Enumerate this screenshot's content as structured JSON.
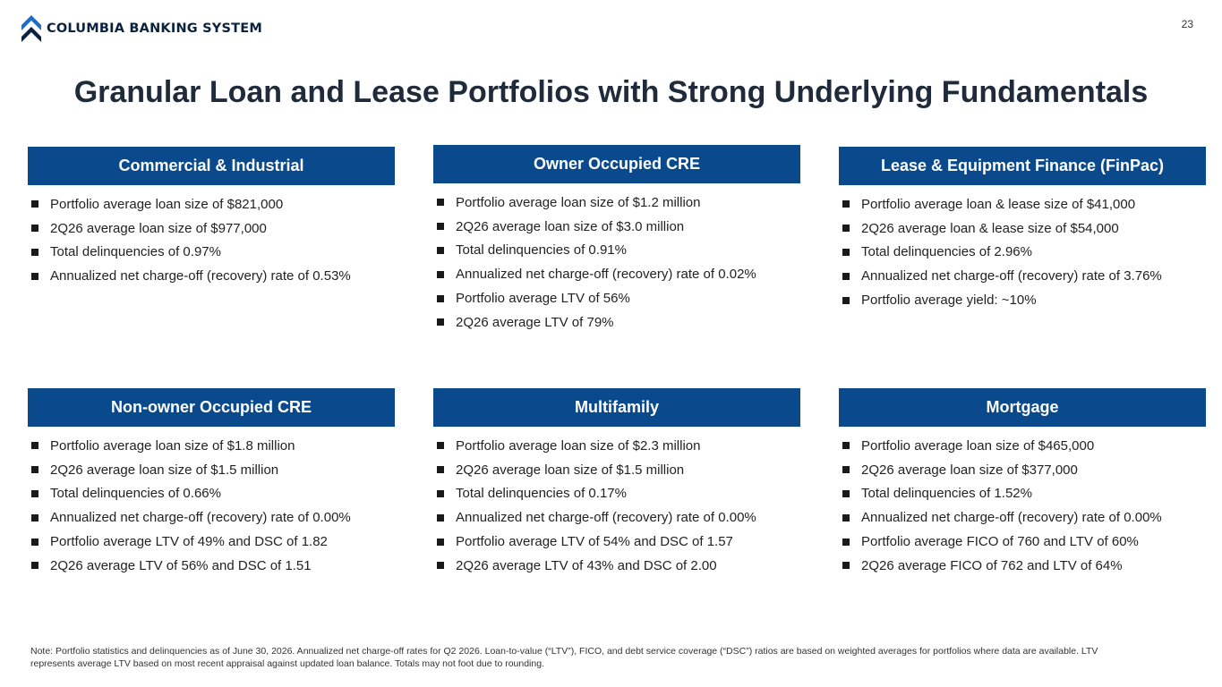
{
  "brand": {
    "name": "COLUMBIA BANKING SYSTEM",
    "logo_icon": "chevron-stack-logo-icon",
    "primary_color": "#0a4a8c",
    "logo_color": "#0a2240"
  },
  "page_number": "23",
  "title": "Granular Loan and Lease Portfolios with Strong Underlying Fundamentals",
  "panels": [
    {
      "header": "Commercial & Industrial",
      "items": [
        "Portfolio average loan size of $821,000",
        "2Q26 average loan size of $977,000",
        "Total delinquencies of 0.97%",
        "Annualized net charge-off (recovery) rate of 0.53%"
      ]
    },
    {
      "header": "Owner Occupied CRE",
      "items": [
        "Portfolio average loan size of $1.2 million",
        "2Q26 average loan size of $3.0 million",
        "Total delinquencies of 0.91%",
        "Annualized net charge-off (recovery) rate of 0.02%",
        "Portfolio average LTV of 56%",
        "2Q26 average LTV of 79%"
      ]
    },
    {
      "header": "Lease & Equipment Finance (FinPac)",
      "items": [
        "Portfolio average loan & lease size of $41,000",
        "2Q26 average loan & lease size of $54,000",
        "Total delinquencies of 2.96%",
        "Annualized net charge-off (recovery) rate of 3.76%",
        "Portfolio average yield: ~10%"
      ]
    },
    {
      "header": "Non-owner Occupied CRE",
      "items": [
        "Portfolio average loan size of $1.8 million",
        "2Q26 average loan size of $1.5 million",
        "Total delinquencies of 0.66%",
        "Annualized net charge-off (recovery) rate of 0.00%",
        "Portfolio average LTV of 49% and DSC of 1.82",
        "2Q26 average LTV of 56% and DSC of 1.51"
      ]
    },
    {
      "header": "Multifamily",
      "items": [
        "Portfolio average loan size of $2.3 million",
        "2Q26 average loan size of $1.5 million",
        "Total delinquencies of 0.17%",
        "Annualized net charge-off (recovery) rate of 0.00%",
        "Portfolio average LTV of 54% and DSC of 1.57",
        "2Q26 average LTV of 43% and DSC of 2.00"
      ]
    },
    {
      "header": "Mortgage",
      "items": [
        "Portfolio average loan size of $465,000",
        "2Q26 average loan size of $377,000",
        "Total delinquencies of 1.52%",
        "Annualized net charge-off (recovery) rate of 0.00%",
        "Portfolio average FICO of 760 and LTV of 60%",
        "2Q26 average FICO of 762 and LTV of 64%"
      ]
    }
  ],
  "note": "Note: Portfolio statistics and delinquencies as of June 30, 2026. Annualized net charge-off rates for Q2 2026. Loan-to-value (“LTV”), FICO, and debt service coverage (“DSC”) ratios are based on weighted averages for portfolios where data are available. LTV represents average LTV based on most recent appraisal against updated loan balance.  Totals may not foot due to rounding."
}
